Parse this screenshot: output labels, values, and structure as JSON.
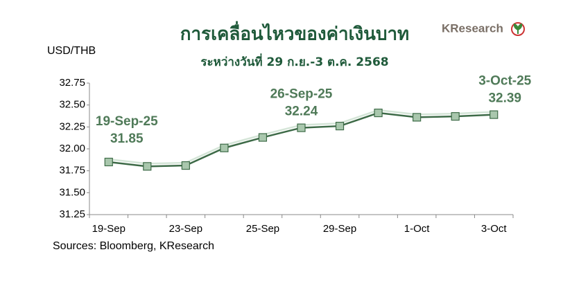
{
  "chart_data": {
    "type": "line",
    "title": "การเคลื่อนไหวของค่าเงินบาท",
    "subtitle": "ระหว่างวันที่ 29 ก.ย.-3 ต.ค. 2568",
    "y_label": "USD/THB",
    "source": "Sources: Bloomberg, KResearch",
    "logo": "KResearch",
    "categories": [
      "19-Sep",
      null,
      "23-Sep",
      null,
      "25-Sep",
      null,
      "29-Sep",
      null,
      "1-Oct",
      null,
      "3-Oct"
    ],
    "series": [
      {
        "name": "USD/THB",
        "color": "#3d6b47",
        "marker_color": "#a9c7ad",
        "values": [
          31.85,
          31.8,
          31.81,
          32.01,
          32.13,
          32.24,
          32.26,
          32.41,
          32.36,
          32.37,
          32.39
        ]
      }
    ],
    "ylim": [
      31.25,
      32.75
    ],
    "yticks": [
      31.25,
      {
        "value": 31.5,
        "label": "31.50"
      },
      31.75,
      {
        "value": 32,
        "label": "32.00"
      },
      32.25,
      {
        "value": 32.5,
        "label": "32.50"
      },
      32.75
    ],
    "annotations": [
      {
        "index": 0,
        "date": "19-Sep-25",
        "text": "31.85"
      },
      {
        "index": 5,
        "date": "26-Sep-25",
        "text": "32.24"
      },
      {
        "index": 10,
        "date": "3-Oct-25",
        "text": "32.39"
      }
    ]
  }
}
